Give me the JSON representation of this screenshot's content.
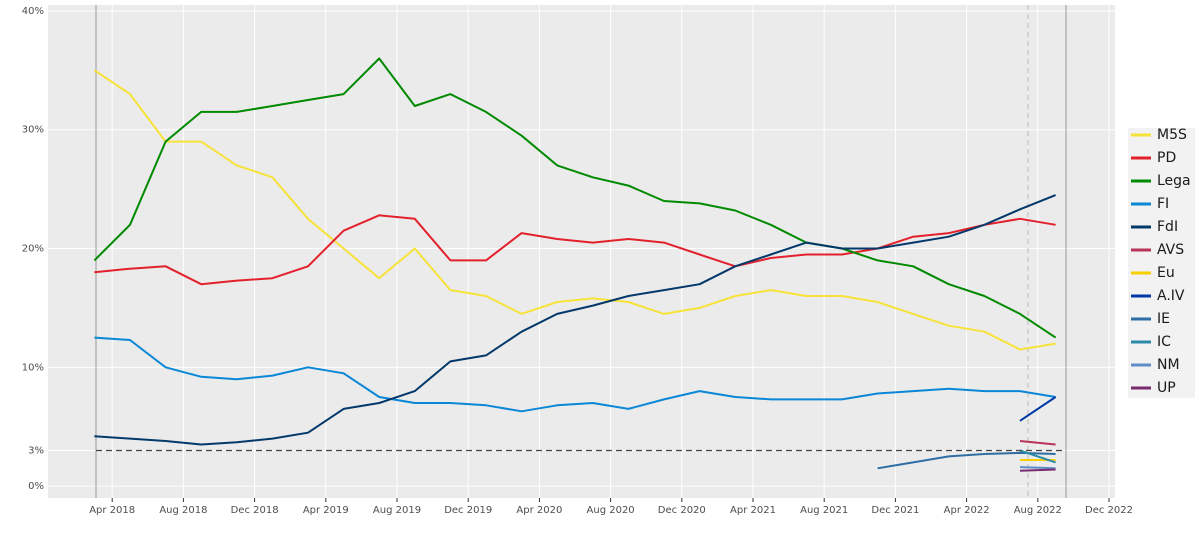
{
  "chart_data": {
    "type": "line",
    "x": [
      "Mar 2018",
      "May 2018",
      "Jul 2018",
      "Sep 2018",
      "Nov 2018",
      "Jan 2019",
      "Mar 2019",
      "May 2019",
      "Jul 2019",
      "Sep 2019",
      "Nov 2019",
      "Jan 2020",
      "Mar 2020",
      "May 2020",
      "Jul 2020",
      "Sep 2020",
      "Nov 2020",
      "Jan 2021",
      "Mar 2021",
      "May 2021",
      "Jul 2021",
      "Sep 2021",
      "Nov 2021",
      "Jan 2022",
      "Mar 2022",
      "May 2022",
      "Jul 2022",
      "Sep 2022"
    ],
    "series": [
      {
        "name": "M5S",
        "color": "#f7e23a",
        "values": [
          35,
          33,
          29,
          29,
          27,
          26,
          22.5,
          20,
          17.5,
          20,
          16.5,
          16,
          14.5,
          15.5,
          15.8,
          15.5,
          14.5,
          15,
          16,
          16.5,
          16,
          16,
          15.5,
          14.5,
          13.5,
          13,
          11.5,
          12
        ]
      },
      {
        "name": "PD",
        "color": "#e3212c",
        "values": [
          18,
          18.3,
          18.5,
          17,
          17.3,
          17.5,
          18.5,
          21.5,
          22.8,
          22.5,
          19,
          19,
          21.3,
          20.8,
          20.5,
          20.8,
          20.5,
          19.5,
          18.5,
          19.2,
          19.5,
          19.5,
          20,
          21,
          21.3,
          22,
          22.5,
          22
        ]
      },
      {
        "name": "Lega",
        "color": "#008a00",
        "values": [
          19,
          22,
          29,
          31.5,
          31.5,
          32,
          32.5,
          33,
          36,
          32,
          33,
          31.5,
          29.5,
          27,
          26,
          25.3,
          24,
          23.8,
          23.2,
          22,
          20.5,
          20,
          19,
          18.5,
          17,
          16,
          14.5,
          12.5
        ]
      },
      {
        "name": "FI",
        "color": "#0a87d7",
        "values": [
          12.5,
          12.3,
          10,
          9.2,
          9,
          9.3,
          10,
          9.5,
          7.5,
          7,
          7,
          6.8,
          6.3,
          6.8,
          7,
          6.5,
          7.3,
          8,
          7.5,
          7.3,
          7.3,
          7.3,
          7.8,
          8,
          8.2,
          8,
          8,
          7.5
        ]
      },
      {
        "name": "FdI",
        "color": "#03386a",
        "values": [
          4.2,
          4,
          3.8,
          3.5,
          3.7,
          4,
          4.5,
          6.5,
          7,
          8,
          10.5,
          11,
          13,
          14.5,
          15.2,
          16,
          16.5,
          17,
          18.5,
          19.5,
          20.5,
          20,
          20,
          20.5,
          21,
          22,
          23.3,
          24.5
        ]
      },
      {
        "name": "AVS",
        "color": "#b8345a",
        "values": [
          null,
          null,
          null,
          null,
          null,
          null,
          null,
          null,
          null,
          null,
          null,
          null,
          null,
          null,
          null,
          null,
          null,
          null,
          null,
          null,
          null,
          null,
          null,
          null,
          null,
          null,
          3.8,
          3.5
        ]
      },
      {
        "name": "Eu",
        "color": "#f5cf00",
        "values": [
          null,
          null,
          null,
          null,
          null,
          null,
          null,
          null,
          null,
          null,
          null,
          null,
          null,
          null,
          null,
          null,
          null,
          null,
          null,
          null,
          null,
          null,
          null,
          null,
          null,
          null,
          2.2,
          2.2
        ]
      },
      {
        "name": "A.IV",
        "color": "#0039a6",
        "values": [
          null,
          null,
          null,
          null,
          null,
          null,
          null,
          null,
          null,
          null,
          null,
          null,
          null,
          null,
          null,
          null,
          null,
          null,
          null,
          null,
          null,
          null,
          null,
          null,
          null,
          null,
          5.5,
          7.5
        ]
      },
      {
        "name": "IE",
        "color": "#2f6ea5",
        "values": [
          null,
          null,
          null,
          null,
          null,
          null,
          null,
          null,
          null,
          null,
          null,
          null,
          null,
          null,
          null,
          null,
          null,
          null,
          null,
          null,
          null,
          null,
          1.5,
          2,
          2.5,
          2.7,
          2.8,
          2.7
        ]
      },
      {
        "name": "IC",
        "color": "#2a8aa8",
        "values": [
          null,
          null,
          null,
          null,
          null,
          null,
          null,
          null,
          null,
          null,
          null,
          null,
          null,
          null,
          null,
          null,
          null,
          null,
          null,
          null,
          null,
          null,
          null,
          null,
          null,
          null,
          3,
          2
        ]
      },
      {
        "name": "NM",
        "color": "#5e8ec7",
        "values": [
          null,
          null,
          null,
          null,
          null,
          null,
          null,
          null,
          null,
          null,
          null,
          null,
          null,
          null,
          null,
          null,
          null,
          null,
          null,
          null,
          null,
          null,
          null,
          null,
          null,
          null,
          1.6,
          1.5
        ]
      },
      {
        "name": "UP",
        "color": "#7a2a6e",
        "values": [
          null,
          null,
          null,
          null,
          null,
          null,
          null,
          null,
          null,
          null,
          null,
          null,
          null,
          null,
          null,
          null,
          null,
          null,
          null,
          null,
          null,
          null,
          null,
          null,
          null,
          null,
          1.3,
          1.4
        ]
      }
    ],
    "threshold": 3,
    "xlim": [
      "Dec 2017",
      "Dec 2022"
    ],
    "xticks": [
      "Apr 2018",
      "Aug 2018",
      "Dec 2018",
      "Apr 2019",
      "Aug 2019",
      "Dec 2019",
      "Apr 2020",
      "Aug 2020",
      "Dec 2020",
      "Apr 2021",
      "Aug 2021",
      "Dec 2021",
      "Apr 2022",
      "Aug 2022",
      "Dec 2022"
    ],
    "ylim": [
      -1,
      40.5
    ],
    "yticks": [
      {
        "value": 0,
        "label": "0%"
      },
      {
        "value": 3,
        "label": "3%"
      },
      {
        "value": 10,
        "label": "10%"
      },
      {
        "value": 20,
        "label": "20%"
      },
      {
        "value": 30,
        "label": "30%"
      },
      {
        "value": 40,
        "label": "40%"
      }
    ],
    "grid": true
  }
}
